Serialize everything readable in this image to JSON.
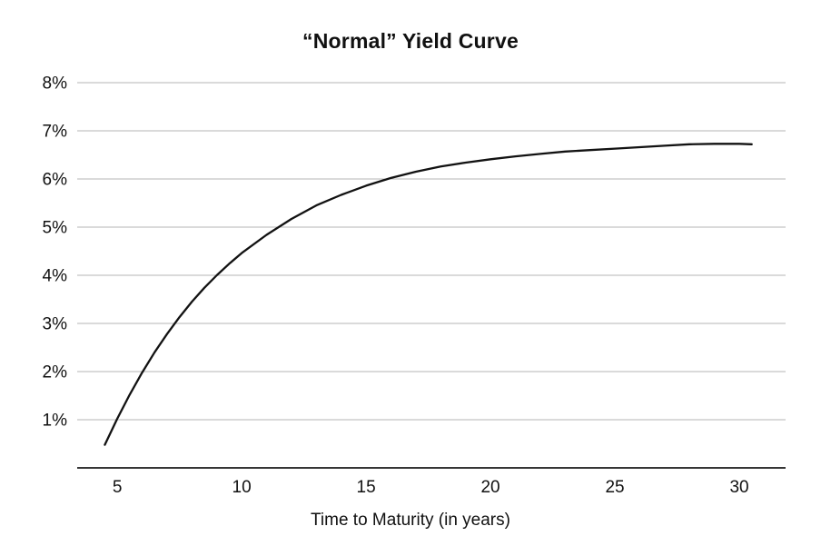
{
  "page": {
    "background": "#ffffff"
  },
  "chart_data": {
    "type": "line",
    "title": "“Normal” Yield Curve",
    "xlabel": "Time to Maturity (in years)",
    "ylabel": "",
    "x_ticks": [
      5,
      10,
      15,
      20,
      25,
      30
    ],
    "y_ticks": [
      1,
      2,
      3,
      4,
      5,
      6,
      7,
      8
    ],
    "y_tick_suffix": "%",
    "xlim": [
      3.39,
      31.86
    ],
    "ylim": [
      0,
      8
    ],
    "grid": "horizontal-only",
    "legend": "none",
    "line_color": "#121212",
    "grid_color": "#b6b6b6",
    "axis_color": "#1a1a1a",
    "series": [
      {
        "name": "yield",
        "x": [
          4.5,
          5,
          5.5,
          6,
          6.5,
          7,
          7.5,
          8,
          8.5,
          9,
          9.5,
          10,
          11,
          12,
          13,
          14,
          15,
          16,
          17,
          18,
          19,
          20,
          21,
          22,
          23,
          24,
          25,
          26,
          27,
          28,
          29,
          30,
          30.5
        ],
        "y": [
          0.48,
          1.02,
          1.52,
          1.98,
          2.4,
          2.78,
          3.13,
          3.45,
          3.74,
          4.0,
          4.24,
          4.46,
          4.84,
          5.17,
          5.45,
          5.67,
          5.86,
          6.02,
          6.15,
          6.26,
          6.34,
          6.41,
          6.47,
          6.52,
          6.57,
          6.6,
          6.63,
          6.66,
          6.69,
          6.72,
          6.73,
          6.73,
          6.72
        ]
      }
    ]
  }
}
